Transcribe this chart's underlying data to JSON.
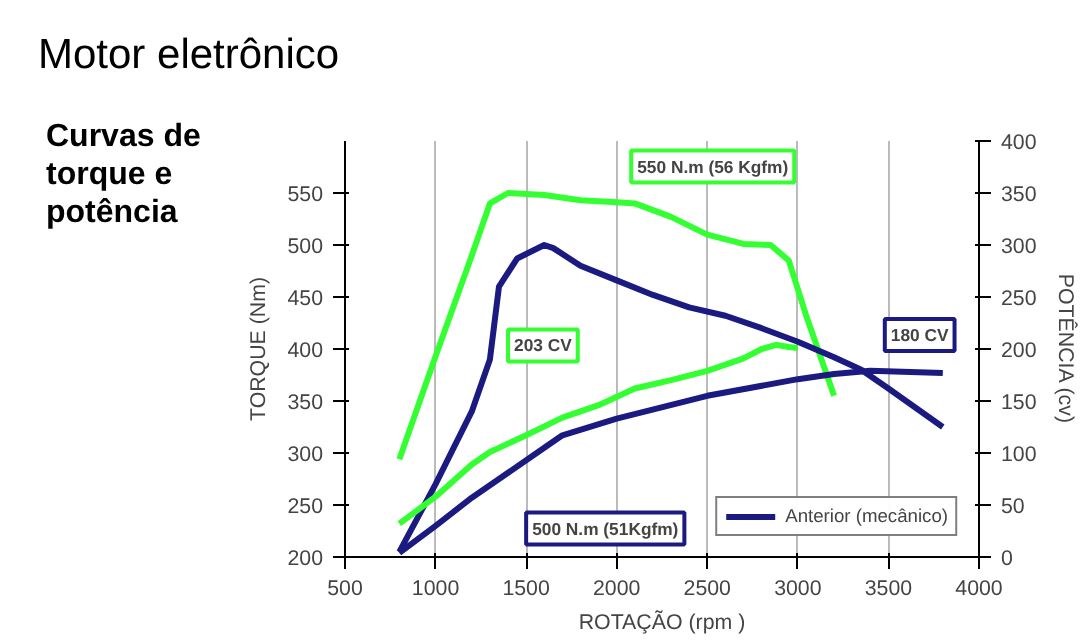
{
  "chart_data": {
    "type": "line",
    "title": "Motor eletrônico",
    "subtitle": "Curvas de torque e potência",
    "xlabel": "ROTAÇÃO (rpm )",
    "ylabel": "TORQUE (Nm)",
    "y2label": "POTÊNCIA (cv)",
    "xlim": [
      500,
      4000
    ],
    "xticks": [
      500,
      1000,
      1500,
      2000,
      2500,
      3000,
      3500,
      4000
    ],
    "ylim": [
      200,
      600
    ],
    "yticks": [
      200,
      250,
      300,
      350,
      400,
      450,
      500,
      550
    ],
    "y2lim": [
      0,
      400
    ],
    "y2ticks": [
      0,
      50,
      100,
      150,
      200,
      250,
      300,
      350,
      400
    ],
    "grid": "x",
    "legend": "bottom right",
    "line_style": "solid",
    "marker": "none",
    "annotations": [
      "550 N.m (56 Kgfm)",
      "500 N.m (51Kgfm)",
      "203 CV",
      "180 CV"
    ],
    "series": [
      {
        "color": "#33ff33",
        "x": [
          800,
          1000,
          1200,
          1300,
          1400,
          1600,
          1800,
          2000,
          2100,
          2300,
          2500,
          2700,
          2850,
          2950,
          3050,
          3150,
          3200
        ],
        "values": [
          294,
          393,
          490,
          540,
          550,
          548,
          543,
          541,
          540,
          527,
          510,
          501,
          500,
          485,
          430,
          380,
          355
        ]
      },
      {
        "name": "Anterior (mecânico)",
        "color": "#1a1a80",
        "x": [
          800,
          1000,
          1200,
          1300,
          1350,
          1450,
          1600,
          1650,
          1800,
          2000,
          2200,
          2400,
          2600,
          2800,
          3000,
          3200,
          3350,
          3500,
          3800
        ],
        "values": [
          205,
          270,
          340,
          390,
          460,
          487,
          500,
          497,
          480,
          466,
          452,
          440,
          432,
          420,
          407,
          392,
          380,
          362,
          325
        ]
      },
      {
        "color": "#33ff33",
        "axis": "y2",
        "x": [
          800,
          1000,
          1200,
          1300,
          1500,
          1700,
          1900,
          2100,
          2300,
          2500,
          2700,
          2800,
          2880,
          2950,
          3000
        ],
        "values": [
          32,
          58,
          89,
          101,
          117,
          134,
          146,
          162,
          170,
          179,
          191,
          200,
          204,
          202,
          201
        ]
      },
      {
        "color": "#1a1a80",
        "axis": "y2",
        "x": [
          800,
          1000,
          1200,
          1400,
          1600,
          1700,
          2000,
          2500,
          3000,
          3200,
          3400,
          3800
        ],
        "values": [
          4,
          30,
          57,
          81,
          105,
          117,
          133,
          155,
          171,
          176,
          179,
          177
        ]
      }
    ]
  }
}
